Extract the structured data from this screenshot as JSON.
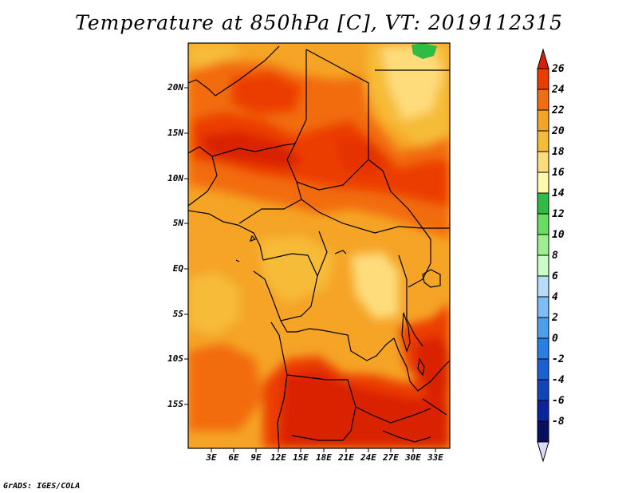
{
  "title": "Temperature at 850hPa [C], VT: 2019112315",
  "credit": "GrADS: IGES/COLA",
  "map": {
    "lat_ticks": [
      "20N",
      "15N",
      "10N",
      "5N",
      "EQ",
      "5S",
      "10S",
      "15S"
    ],
    "lon_ticks": [
      "3E",
      "6E",
      "9E",
      "12E",
      "15E",
      "18E",
      "21E",
      "24E",
      "27E",
      "30E",
      "33E"
    ]
  },
  "colorbar": {
    "labels": [
      "26",
      "24",
      "22",
      "20",
      "18",
      "16",
      "14",
      "12",
      "10",
      "8",
      "6",
      "4",
      "2",
      "0",
      "-2",
      "-4",
      "-6",
      "-8"
    ],
    "colors": [
      "#d92000",
      "#ec3d00",
      "#f26c11",
      "#f5a426",
      "#f6bc39",
      "#fedc7c",
      "#fffaaa",
      "#2fbb44",
      "#68dd62",
      "#9df08f",
      "#c9fcc6",
      "#b5dcfb",
      "#7fbdf6",
      "#4d9fee",
      "#277ee3",
      "#1a60d2",
      "#1245b8",
      "#08259e",
      "#061060",
      "#dcdcf6"
    ]
  }
}
